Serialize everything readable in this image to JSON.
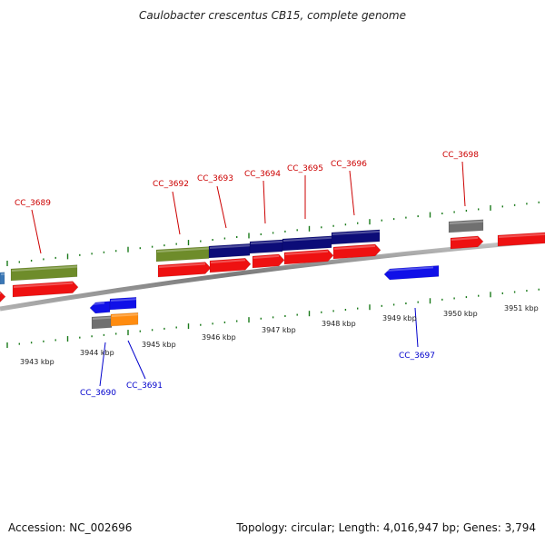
{
  "title": "Caulobacter crescentus CB15, complete genome",
  "footer": {
    "accession": "Accession: NC_002696",
    "topology": "Topology: circular; Length: 4,016,947 bp; Genes: 3,794"
  },
  "colors": {
    "forward_label": "#cc0000",
    "reverse_label": "#0000cc",
    "backbone": "#8c8c8c",
    "tick": "#1a7a1a",
    "gene_red": "#ee1111",
    "gene_green": "#6e8c2a",
    "gene_navy": "#0c0c78",
    "gene_blue": "#1010e8",
    "gene_grey": "#707070",
    "gene_orange": "#ff8c10"
  },
  "tick_labels": [
    "3943 kbp",
    "3944 kbp",
    "3945 kbp",
    "3946 kbp",
    "3947 kbp",
    "3948 kbp",
    "3949 kbp",
    "3950 kbp",
    "3951 kbp"
  ],
  "gene_labels": {
    "forward": [
      "CC_3689",
      "CC_3692",
      "CC_3693",
      "CC_3694",
      "CC_3695",
      "CC_3696",
      "CC_3698"
    ],
    "reverse": [
      "CC_3690",
      "CC_3691",
      "CC_3697"
    ]
  }
}
